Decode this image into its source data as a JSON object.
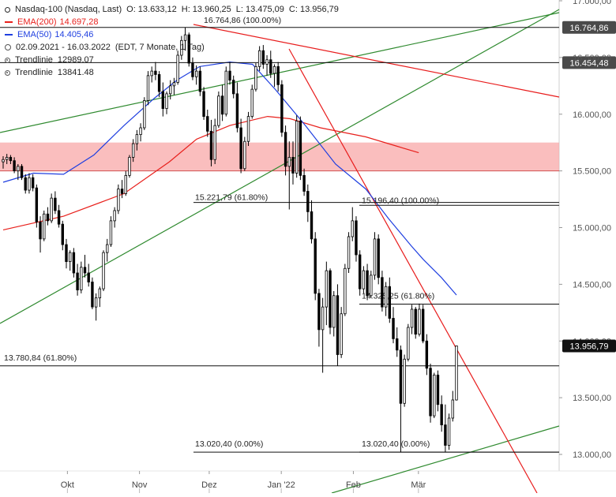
{
  "header": {
    "symbol": "Nasdaq-100 (Nasdaq, Last)",
    "open": "O: 13.633,12",
    "high": "H: 13.960,25",
    "low": "L: 13.475,09",
    "close": "C: 13.956,79",
    "ema200_label": "EMA(200)",
    "ema200_value": "14.697,28",
    "ema50_label": "EMA(50)",
    "ema50_value": "14.405,46",
    "range": "02.09.2021 - 16.03.2022",
    "range_info": "(EDT, 7 Monate, 1 Tag)",
    "trend1_label": "Trendlinie",
    "trend1_value": "12989.07",
    "trend2_label": "Trendlinie",
    "trend2_value": "13841.48"
  },
  "colors": {
    "ema200": "#e8201c",
    "ema50": "#1f3fe0",
    "green_trend": "#2f8a2f",
    "red_trend": "#e81c1c",
    "zone": "#f8a8a8",
    "candle_up": "#ffffff",
    "candle_down": "#000000"
  },
  "chart_data": {
    "type": "candlestick",
    "title": "Nasdaq-100 (Nasdaq, Last)",
    "ylim": [
      12650,
      17050
    ],
    "yticks": [
      "17.000,00",
      "16.500,00",
      "16.000,00",
      "15.500,00",
      "15.000,00",
      "14.500,00",
      "14.000,00",
      "13.500,00",
      "13.000,00"
    ],
    "ytick_values": [
      17000,
      16500,
      16000,
      15500,
      15000,
      14500,
      14000,
      13500,
      13000
    ],
    "x_labels": [
      "Okt",
      "Nov",
      "Dez",
      "Jan '22",
      "Feb",
      "Mär"
    ],
    "x_label_dates": [
      "2021-10-01",
      "2021-11-01",
      "2021-12-01",
      "2022-01-01",
      "2022-02-01",
      "2022-03-01"
    ],
    "date_range": [
      "2021-09-02",
      "2022-03-16"
    ],
    "candles": [
      {
        "o": 15580,
        "h": 15630,
        "l": 15520,
        "c": 15600
      },
      {
        "o": 15600,
        "h": 15650,
        "l": 15560,
        "c": 15620
      },
      {
        "o": 15620,
        "h": 15640,
        "l": 15560,
        "c": 15590
      },
      {
        "o": 15590,
        "h": 15620,
        "l": 15480,
        "c": 15500
      },
      {
        "o": 15500,
        "h": 15560,
        "l": 15420,
        "c": 15540
      },
      {
        "o": 15540,
        "h": 15560,
        "l": 15420,
        "c": 15440
      },
      {
        "o": 15440,
        "h": 15470,
        "l": 15300,
        "c": 15330
      },
      {
        "o": 15330,
        "h": 15480,
        "l": 15300,
        "c": 15440
      },
      {
        "o": 15440,
        "h": 15470,
        "l": 15320,
        "c": 15350
      },
      {
        "o": 15350,
        "h": 15380,
        "l": 15000,
        "c": 15050
      },
      {
        "o": 15050,
        "h": 15100,
        "l": 14780,
        "c": 14900
      },
      {
        "o": 14900,
        "h": 15150,
        "l": 14880,
        "c": 15120
      },
      {
        "o": 15120,
        "h": 15180,
        "l": 15020,
        "c": 15060
      },
      {
        "o": 15060,
        "h": 15300,
        "l": 15040,
        "c": 15260
      },
      {
        "o": 15260,
        "h": 15320,
        "l": 15120,
        "c": 15150
      },
      {
        "o": 15150,
        "h": 15200,
        "l": 15000,
        "c": 15030
      },
      {
        "o": 15030,
        "h": 15060,
        "l": 14800,
        "c": 14850
      },
      {
        "o": 14850,
        "h": 14900,
        "l": 14640,
        "c": 14700
      },
      {
        "o": 14700,
        "h": 14800,
        "l": 14620,
        "c": 14780
      },
      {
        "o": 14780,
        "h": 14820,
        "l": 14560,
        "c": 14600
      },
      {
        "o": 14600,
        "h": 14680,
        "l": 14400,
        "c": 14450
      },
      {
        "o": 14450,
        "h": 14700,
        "l": 14420,
        "c": 14650
      },
      {
        "o": 14650,
        "h": 14760,
        "l": 14560,
        "c": 14600
      },
      {
        "o": 14600,
        "h": 14680,
        "l": 14480,
        "c": 14520
      },
      {
        "o": 14520,
        "h": 14560,
        "l": 14280,
        "c": 14300
      },
      {
        "o": 14300,
        "h": 14420,
        "l": 14180,
        "c": 14380
      },
      {
        "o": 14380,
        "h": 14480,
        "l": 14300,
        "c": 14460
      },
      {
        "o": 14460,
        "h": 14800,
        "l": 14440,
        "c": 14780
      },
      {
        "o": 14780,
        "h": 14900,
        "l": 14700,
        "c": 14850
      },
      {
        "o": 14850,
        "h": 15100,
        "l": 14830,
        "c": 15060
      },
      {
        "o": 15060,
        "h": 15180,
        "l": 15000,
        "c": 15150
      },
      {
        "o": 15150,
        "h": 15380,
        "l": 15120,
        "c": 15340
      },
      {
        "o": 15340,
        "h": 15420,
        "l": 15260,
        "c": 15300
      },
      {
        "o": 15300,
        "h": 15500,
        "l": 15280,
        "c": 15460
      },
      {
        "o": 15460,
        "h": 15640,
        "l": 15440,
        "c": 15620
      },
      {
        "o": 15620,
        "h": 15780,
        "l": 15580,
        "c": 15740
      },
      {
        "o": 15740,
        "h": 15860,
        "l": 15680,
        "c": 15820
      },
      {
        "o": 15820,
        "h": 15920,
        "l": 15760,
        "c": 15880
      },
      {
        "o": 15880,
        "h": 16150,
        "l": 15860,
        "c": 16120
      },
      {
        "o": 16120,
        "h": 16380,
        "l": 16080,
        "c": 16340
      },
      {
        "o": 16340,
        "h": 16420,
        "l": 16280,
        "c": 16380
      },
      {
        "o": 16380,
        "h": 16460,
        "l": 16300,
        "c": 16350
      },
      {
        "o": 16350,
        "h": 16380,
        "l": 16150,
        "c": 16200
      },
      {
        "o": 16200,
        "h": 16280,
        "l": 15980,
        "c": 16050
      },
      {
        "o": 16050,
        "h": 16200,
        "l": 16000,
        "c": 16180
      },
      {
        "o": 16180,
        "h": 16300,
        "l": 16130,
        "c": 16250
      },
      {
        "o": 16250,
        "h": 16320,
        "l": 16170,
        "c": 16280
      },
      {
        "o": 16280,
        "h": 16560,
        "l": 16260,
        "c": 16520
      },
      {
        "o": 16520,
        "h": 16690,
        "l": 16480,
        "c": 16650
      },
      {
        "o": 16650,
        "h": 16764,
        "l": 16560,
        "c": 16700
      },
      {
        "o": 16700,
        "h": 16720,
        "l": 16420,
        "c": 16450
      },
      {
        "o": 16450,
        "h": 16500,
        "l": 16300,
        "c": 16330
      },
      {
        "o": 16330,
        "h": 16430,
        "l": 16260,
        "c": 16380
      },
      {
        "o": 16380,
        "h": 16420,
        "l": 16160,
        "c": 16200
      },
      {
        "o": 16200,
        "h": 16240,
        "l": 15950,
        "c": 15980
      },
      {
        "o": 15980,
        "h": 16040,
        "l": 15800,
        "c": 15850
      },
      {
        "o": 15850,
        "h": 15950,
        "l": 15540,
        "c": 15600
      },
      {
        "o": 15600,
        "h": 15960,
        "l": 15560,
        "c": 15900
      },
      {
        "o": 15900,
        "h": 16200,
        "l": 15880,
        "c": 16160
      },
      {
        "o": 16160,
        "h": 16260,
        "l": 15940,
        "c": 16000
      },
      {
        "o": 16000,
        "h": 16420,
        "l": 15980,
        "c": 16380
      },
      {
        "o": 16380,
        "h": 16460,
        "l": 16260,
        "c": 16300
      },
      {
        "o": 16300,
        "h": 16340,
        "l": 16140,
        "c": 16180
      },
      {
        "o": 16180,
        "h": 16280,
        "l": 15840,
        "c": 15880
      },
      {
        "o": 15880,
        "h": 15960,
        "l": 15480,
        "c": 15520
      },
      {
        "o": 15520,
        "h": 15800,
        "l": 15500,
        "c": 15760
      },
      {
        "o": 15760,
        "h": 16020,
        "l": 15720,
        "c": 15980
      },
      {
        "o": 15980,
        "h": 16260,
        "l": 15960,
        "c": 16220
      },
      {
        "o": 16220,
        "h": 16450,
        "l": 16200,
        "c": 16420
      },
      {
        "o": 16420,
        "h": 16600,
        "l": 16380,
        "c": 16560
      },
      {
        "o": 16560,
        "h": 16610,
        "l": 16400,
        "c": 16440
      },
      {
        "o": 16440,
        "h": 16520,
        "l": 16340,
        "c": 16480
      },
      {
        "o": 16480,
        "h": 16560,
        "l": 16320,
        "c": 16360
      },
      {
        "o": 16360,
        "h": 16440,
        "l": 16240,
        "c": 16420
      },
      {
        "o": 16420,
        "h": 16460,
        "l": 16200,
        "c": 16260
      },
      {
        "o": 16260,
        "h": 16300,
        "l": 15800,
        "c": 15840
      },
      {
        "o": 15840,
        "h": 15900,
        "l": 15460,
        "c": 15540
      },
      {
        "o": 15540,
        "h": 15760,
        "l": 15160,
        "c": 15620
      },
      {
        "o": 15620,
        "h": 15760,
        "l": 15380,
        "c": 15480
      },
      {
        "o": 15480,
        "h": 15990,
        "l": 15440,
        "c": 15940
      },
      {
        "o": 15940,
        "h": 15980,
        "l": 15420,
        "c": 15460
      },
      {
        "o": 15460,
        "h": 15520,
        "l": 15280,
        "c": 15320
      },
      {
        "o": 15320,
        "h": 15380,
        "l": 15050,
        "c": 15140
      },
      {
        "o": 15140,
        "h": 15240,
        "l": 14860,
        "c": 14900
      },
      {
        "o": 14900,
        "h": 14960,
        "l": 14360,
        "c": 14420
      },
      {
        "o": 14420,
        "h": 14460,
        "l": 13950,
        "c": 14100
      },
      {
        "o": 14100,
        "h": 14380,
        "l": 13720,
        "c": 14300
      },
      {
        "o": 14300,
        "h": 14700,
        "l": 14140,
        "c": 14620
      },
      {
        "o": 14620,
        "h": 14640,
        "l": 14060,
        "c": 14120
      },
      {
        "o": 14120,
        "h": 14440,
        "l": 14040,
        "c": 14400
      },
      {
        "o": 14400,
        "h": 14500,
        "l": 13780,
        "c": 13880
      },
      {
        "o": 13880,
        "h": 14300,
        "l": 13850,
        "c": 14240
      },
      {
        "o": 14240,
        "h": 14680,
        "l": 14220,
        "c": 14640
      },
      {
        "o": 14640,
        "h": 14960,
        "l": 14600,
        "c": 14920
      },
      {
        "o": 14920,
        "h": 15180,
        "l": 14880,
        "c": 15060
      },
      {
        "o": 15060,
        "h": 15100,
        "l": 14700,
        "c": 14760
      },
      {
        "o": 14760,
        "h": 14800,
        "l": 14400,
        "c": 14460
      },
      {
        "o": 14460,
        "h": 14660,
        "l": 14420,
        "c": 14620
      },
      {
        "o": 14620,
        "h": 14680,
        "l": 14360,
        "c": 14400
      },
      {
        "o": 14400,
        "h": 14620,
        "l": 14380,
        "c": 14580
      },
      {
        "o": 14580,
        "h": 14960,
        "l": 14540,
        "c": 14900
      },
      {
        "o": 14900,
        "h": 14940,
        "l": 14500,
        "c": 14560
      },
      {
        "o": 14560,
        "h": 14620,
        "l": 14260,
        "c": 14300
      },
      {
        "o": 14300,
        "h": 14520,
        "l": 14220,
        "c": 14480
      },
      {
        "o": 14480,
        "h": 14560,
        "l": 14160,
        "c": 14200
      },
      {
        "o": 14200,
        "h": 14300,
        "l": 13980,
        "c": 14020
      },
      {
        "o": 14020,
        "h": 14120,
        "l": 13860,
        "c": 13920
      },
      {
        "o": 13920,
        "h": 13960,
        "l": 13020,
        "c": 13450
      },
      {
        "o": 13450,
        "h": 13880,
        "l": 13420,
        "c": 13840
      },
      {
        "o": 13840,
        "h": 14150,
        "l": 13820,
        "c": 14120
      },
      {
        "o": 14120,
        "h": 14320,
        "l": 14060,
        "c": 14280
      },
      {
        "o": 14280,
        "h": 14300,
        "l": 14020,
        "c": 14060
      },
      {
        "o": 14060,
        "h": 14330,
        "l": 14040,
        "c": 14280
      },
      {
        "o": 14280,
        "h": 14320,
        "l": 13980,
        "c": 14000
      },
      {
        "o": 14000,
        "h": 14060,
        "l": 13700,
        "c": 13760
      },
      {
        "o": 13760,
        "h": 13800,
        "l": 13280,
        "c": 13340
      },
      {
        "o": 13340,
        "h": 13720,
        "l": 13320,
        "c": 13700
      },
      {
        "o": 13700,
        "h": 13740,
        "l": 13380,
        "c": 13440
      },
      {
        "o": 13440,
        "h": 13520,
        "l": 13200,
        "c": 13260
      },
      {
        "o": 13260,
        "h": 13440,
        "l": 13020,
        "c": 13080
      },
      {
        "o": 13080,
        "h": 13360,
        "l": 13040,
        "c": 13320
      },
      {
        "o": 13320,
        "h": 13560,
        "l": 13290,
        "c": 13480
      },
      {
        "o": 13480,
        "h": 13960,
        "l": 13475,
        "c": 13957
      }
    ],
    "ema200": [
      [
        0,
        14980
      ],
      [
        40,
        15100
      ],
      [
        80,
        15300
      ],
      [
        110,
        15580
      ],
      [
        128,
        15780
      ],
      [
        150,
        15900
      ],
      [
        175,
        15980
      ],
      [
        190,
        15960
      ],
      [
        210,
        15880
      ],
      [
        240,
        15800
      ],
      [
        260,
        15720
      ],
      [
        275,
        15660
      ]
    ],
    "ema50": [
      [
        0,
        15400
      ],
      [
        20,
        15480
      ],
      [
        40,
        15470
      ],
      [
        60,
        15640
      ],
      [
        80,
        15900
      ],
      [
        100,
        16140
      ],
      [
        115,
        16300
      ],
      [
        130,
        16420
      ],
      [
        150,
        16460
      ],
      [
        165,
        16440
      ],
      [
        180,
        16220
      ],
      [
        200,
        15900
      ],
      [
        220,
        15560
      ],
      [
        240,
        15340
      ],
      [
        255,
        15080
      ],
      [
        270,
        14840
      ],
      [
        278,
        14720
      ],
      [
        290,
        14560
      ],
      [
        300,
        14405
      ]
    ],
    "hlines": [
      {
        "value": 16764.86,
        "label": "16.764,86 (100.00%)",
        "tag": "16.764,86"
      },
      {
        "value": 16454.48,
        "tag": "16.454,48"
      },
      {
        "value": 15221.79,
        "label": "15.221,79 (61.80%)"
      },
      {
        "value": 15196.4,
        "label": "15.196,40 (100.00%)"
      },
      {
        "value": 14325.25,
        "label": "14.325,25 (61.80%)"
      },
      {
        "value": 13780.84,
        "label": "13.780,84 (61.80%)"
      },
      {
        "value": 13020.4,
        "label": "13.020,40 (0.00%)"
      },
      {
        "value": 13020.4,
        "label": "13.020,40 (0.00%)"
      }
    ],
    "last_price_tag": "13.956,79",
    "zone": [
      15500,
      15750
    ]
  }
}
